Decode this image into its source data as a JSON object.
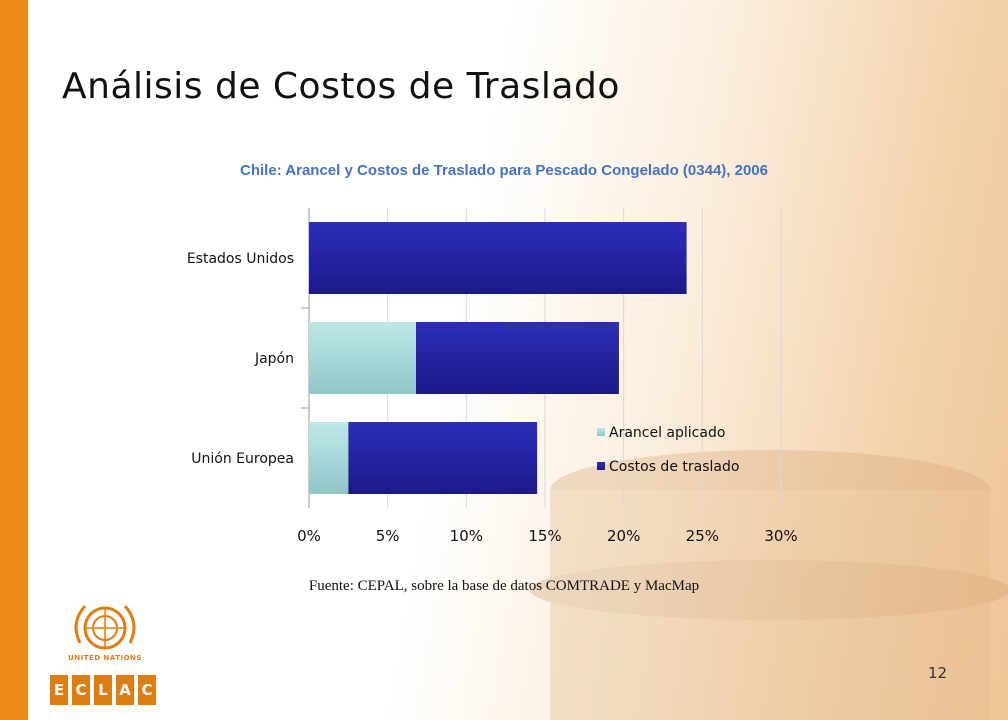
{
  "slide": {
    "title": "Análisis de Costos de Traslado",
    "source": "Fuente: CEPAL, sobre la base de datos COMTRADE y MacMap",
    "page_number": "12",
    "org_name": "UNITED NATIONS",
    "org_acronym": [
      "E",
      "C",
      "L",
      "A",
      "C"
    ]
  },
  "colors": {
    "accent": "#ee8a1a",
    "series_arancel": "#a8dada",
    "series_costos": "#2323a0",
    "chart_title": "#4472c4"
  },
  "chart_data": {
    "type": "bar",
    "orientation": "horizontal",
    "stacked": true,
    "title": "Chile: Arancel y Costos de Traslado para Pescado Congelado (0344), 2006",
    "categories": [
      "Estados Unidos",
      "Japón",
      "Unión Europea"
    ],
    "series": [
      {
        "name": "Arancel aplicado",
        "values": [
          0,
          6.8,
          2.5
        ]
      },
      {
        "name": "Costos de traslado",
        "values": [
          24.0,
          12.9,
          12.0
        ]
      }
    ],
    "xlim": [
      0,
      30
    ],
    "x_ticks": [
      "0%",
      "5%",
      "10%",
      "15%",
      "20%",
      "25%",
      "30%"
    ],
    "x_tick_values": [
      0,
      5,
      10,
      15,
      20,
      25,
      30
    ],
    "grid": true,
    "legend_position": "inside-right"
  }
}
